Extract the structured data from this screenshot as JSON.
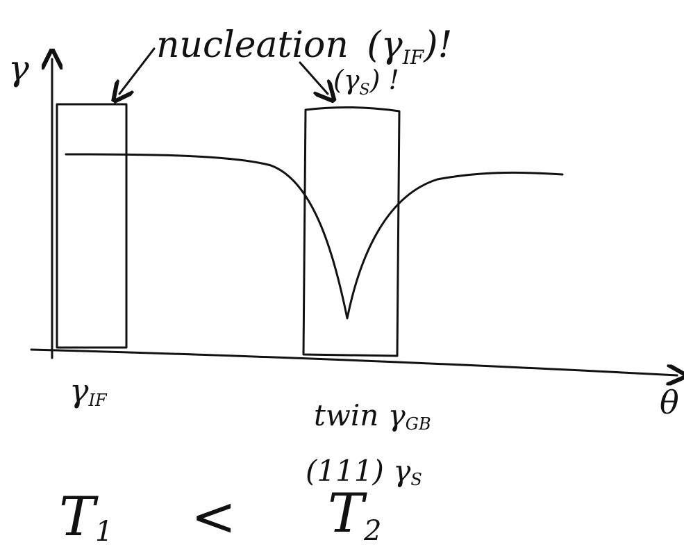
{
  "axes": {
    "y_label": "γ",
    "x_label": "θ"
  },
  "annotations": {
    "nucleation": {
      "word": "nucleation",
      "before": "(γ",
      "subscript": "IF",
      "after": ")!"
    },
    "surface": {
      "before": "(γ",
      "subscript": "S",
      "after": ") !"
    }
  },
  "labels": {
    "left": {
      "symbol": "γ",
      "subscript": "IF"
    },
    "twin": {
      "before": "twin γ",
      "subscript": "GB"
    },
    "plane": {
      "before": "(111) γ",
      "subscript": "S"
    }
  },
  "relation": {
    "left": {
      "symbol": "T",
      "subscript": "1"
    },
    "operator": "<",
    "right": {
      "symbol": "T",
      "subscript": "2"
    }
  }
}
